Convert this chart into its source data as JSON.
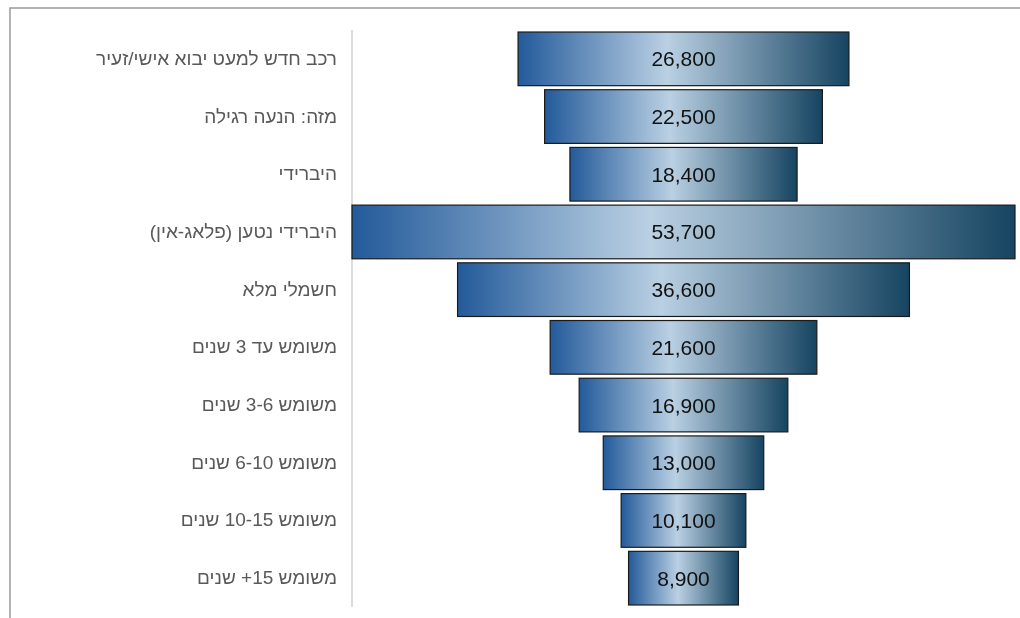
{
  "chart_data": {
    "type": "other",
    "categories": [
      "רכב חדש למעט יבוא אישי/זעיר",
      "מזה: הנעה רגילה",
      "היברידי",
      "היברידי נטען (פלאג-אין)",
      "חשמלי מלא",
      "משומש עד 3 שנים",
      "משומש 3-6 שנים",
      "משומש 6-10 שנים",
      "משומש 10-15 שנים",
      "משומש 15+ שנים"
    ],
    "values": [
      26800,
      22500,
      18400,
      53700,
      36600,
      21600,
      16900,
      13000,
      10100,
      8900
    ],
    "value_labels": [
      "26,800",
      "22,500",
      "18,400",
      "53,700",
      "36,600",
      "21,600",
      "16,900",
      "13,000",
      "10,100",
      "8,900"
    ]
  }
}
